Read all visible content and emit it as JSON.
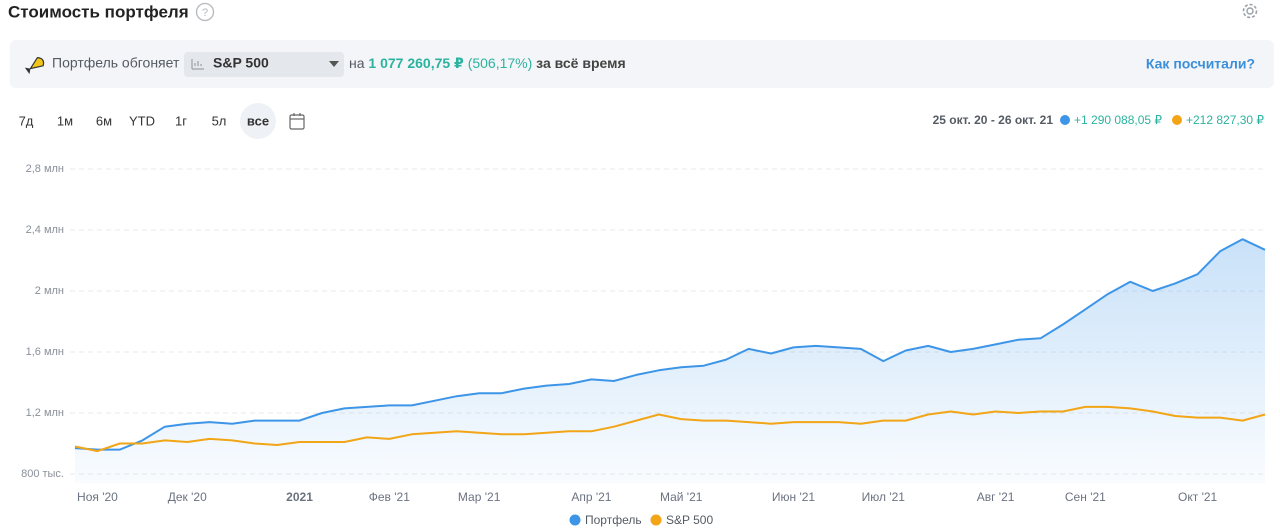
{
  "header": {
    "title": "Стоимость портфеля"
  },
  "banner": {
    "text": "Портфель обгоняет",
    "benchmark": "S&P 500",
    "on": "на",
    "amount": "1 077 260,75 ₽",
    "percent": "(506,17%)",
    "period": "за всё время",
    "link": "Как посчитали?"
  },
  "periods": [
    "7д",
    "1м",
    "6м",
    "YTD",
    "1г",
    "5л",
    "все"
  ],
  "range": {
    "dates": "25 окт. 20 - 26 окт. 21",
    "portfolio_change": "+1 290 088,05 ₽",
    "benchmark_change": "+212 827,30 ₽"
  },
  "chart_data": {
    "type": "line",
    "categories": [
      null,
      "Ноя '20",
      null,
      null,
      null,
      "Дек '20",
      null,
      null,
      null,
      null,
      "2021",
      null,
      null,
      null,
      "Фев '21",
      null,
      null,
      null,
      "Мар '21",
      null,
      null,
      null,
      null,
      "Апр '21",
      null,
      null,
      null,
      "Май '21",
      null,
      null,
      null,
      null,
      "Июн '21",
      null,
      null,
      null,
      "Июл '21",
      null,
      null,
      null,
      null,
      "Авг '21",
      null,
      null,
      null,
      "Сен '21",
      null,
      null,
      null,
      null,
      "Окт '21",
      null,
      null,
      null
    ],
    "series": [
      {
        "name": "Портфель",
        "color": "#3d95e8",
        "fill": true,
        "values": [
          970000,
          960000,
          960000,
          1020000,
          1110000,
          1130000,
          1140000,
          1130000,
          1150000,
          1150000,
          1150000,
          1200000,
          1230000,
          1240000,
          1250000,
          1250000,
          1280000,
          1310000,
          1330000,
          1330000,
          1360000,
          1380000,
          1390000,
          1420000,
          1410000,
          1450000,
          1480000,
          1500000,
          1510000,
          1550000,
          1620000,
          1590000,
          1630000,
          1640000,
          1630000,
          1620000,
          1540000,
          1610000,
          1640000,
          1600000,
          1620000,
          1650000,
          1680000,
          1690000,
          1780000,
          1880000,
          1980000,
          2060000,
          2000000,
          2050000,
          2110000,
          2260000,
          2340000,
          2270000
        ]
      },
      {
        "name": "S&P 500",
        "color": "#f2a516",
        "fill": false,
        "values": [
          980000,
          950000,
          1000000,
          1000000,
          1020000,
          1010000,
          1030000,
          1020000,
          1000000,
          990000,
          1010000,
          1010000,
          1010000,
          1040000,
          1030000,
          1060000,
          1070000,
          1080000,
          1070000,
          1060000,
          1060000,
          1070000,
          1080000,
          1080000,
          1110000,
          1150000,
          1190000,
          1160000,
          1150000,
          1150000,
          1140000,
          1130000,
          1140000,
          1140000,
          1140000,
          1130000,
          1150000,
          1150000,
          1190000,
          1210000,
          1190000,
          1210000,
          1200000,
          1210000,
          1210000,
          1240000,
          1240000,
          1230000,
          1210000,
          1180000,
          1170000,
          1170000,
          1150000,
          1190000
        ]
      }
    ],
    "ylim": [
      740000,
      2800000
    ],
    "yticks": [
      {
        "value": 800000,
        "label": "800 тыс."
      },
      {
        "value": 1200000,
        "label": "1,2 млн"
      },
      {
        "value": 1600000,
        "label": "1,6 млн"
      },
      {
        "value": 2000000,
        "label": "2 млн"
      },
      {
        "value": 2400000,
        "label": "2,4 млн"
      },
      {
        "value": 2800000,
        "label": "2,8 млн"
      }
    ],
    "grid": true,
    "legend": "bottom"
  }
}
